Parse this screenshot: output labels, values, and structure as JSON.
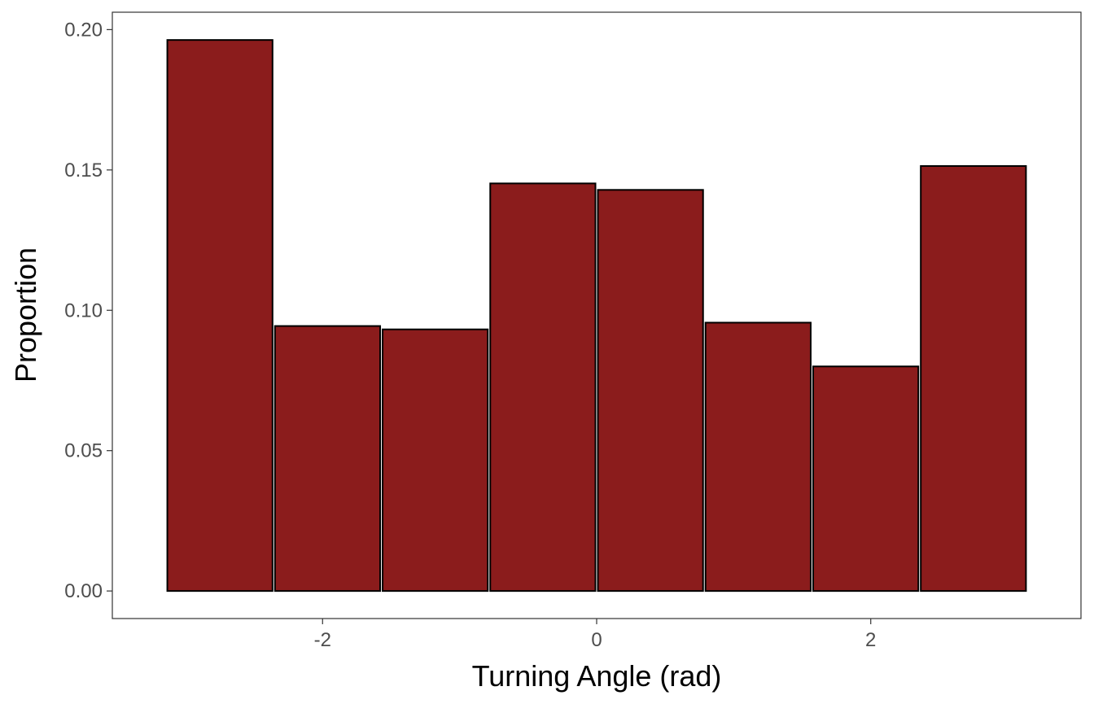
{
  "chart_data": {
    "type": "bar",
    "title": "",
    "xlabel": "Turning Angle (rad)",
    "ylabel": "Proportion",
    "bins": [
      {
        "x0": -3.1416,
        "x1": -2.3562,
        "value": 0.1963
      },
      {
        "x0": -2.3562,
        "x1": -1.5708,
        "value": 0.0944
      },
      {
        "x0": -1.5708,
        "x1": -0.7854,
        "value": 0.0932
      },
      {
        "x0": -0.7854,
        "x1": 0.0,
        "value": 0.1452
      },
      {
        "x0": 0.0,
        "x1": 0.7854,
        "value": 0.1429
      },
      {
        "x0": 0.7854,
        "x1": 1.5708,
        "value": 0.0956
      },
      {
        "x0": 1.5708,
        "x1": 2.3562,
        "value": 0.08
      },
      {
        "x0": 2.3562,
        "x1": 3.1416,
        "value": 0.1514
      }
    ],
    "xlim": [
      -3.534,
      3.534
    ],
    "ylim": [
      -0.00982,
      0.2062
    ],
    "xticks": [
      -2,
      0,
      2
    ],
    "xtick_labels": [
      "-2",
      "0",
      "2"
    ],
    "yticks": [
      0.0,
      0.05,
      0.1,
      0.15,
      0.2
    ],
    "ytick_labels": [
      "0.00",
      "0.05",
      "0.10",
      "0.15",
      "0.20"
    ],
    "grid": false,
    "legend": "none",
    "colors": {
      "bar_fill": "#8b1c1c",
      "bar_stroke": "#000000",
      "panel_border": "#333333",
      "tick_text": "#4d4d4d",
      "tick_line": "#333333",
      "title_text": "#000000"
    }
  }
}
